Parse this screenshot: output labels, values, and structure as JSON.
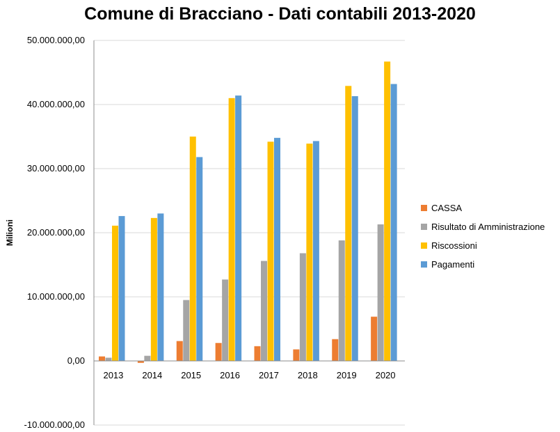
{
  "chart_data": {
    "type": "bar",
    "title": "Comune di Bracciano - Dati contabili 2013-2020",
    "ylabel": "Milioni",
    "xlabel": "",
    "ylim": [
      -10000000,
      50000000
    ],
    "yticks": [
      -10000000,
      0,
      10000000,
      20000000,
      30000000,
      40000000,
      50000000
    ],
    "ytick_labels": [
      "-10.000.000,00",
      "0,00",
      "10.000.000,00",
      "20.000.000,00",
      "30.000.000,00",
      "40.000.000,00",
      "50.000.000,00"
    ],
    "grid": true,
    "legend_position": "right",
    "categories": [
      "2013",
      "2014",
      "2015",
      "2016",
      "2017",
      "2018",
      "2019",
      "2020"
    ],
    "series": [
      {
        "name": "CASSA",
        "color": "#ED7D31",
        "values": [
          700000,
          -300000,
          3100000,
          2800000,
          2300000,
          1800000,
          3400000,
          6900000
        ]
      },
      {
        "name": "Risultato di Amministrazione",
        "color": "#A5A5A5",
        "values": [
          500000,
          800000,
          9500000,
          12700000,
          15600000,
          16800000,
          18800000,
          21300000
        ]
      },
      {
        "name": "Riscossioni",
        "color": "#FFC000",
        "values": [
          21100000,
          22300000,
          35000000,
          41000000,
          34200000,
          33900000,
          42900000,
          46700000
        ]
      },
      {
        "name": "Pagamenti",
        "color": "#5B9BD5",
        "values": [
          22600000,
          23000000,
          31800000,
          41400000,
          34800000,
          34300000,
          41300000,
          43200000
        ]
      }
    ]
  }
}
